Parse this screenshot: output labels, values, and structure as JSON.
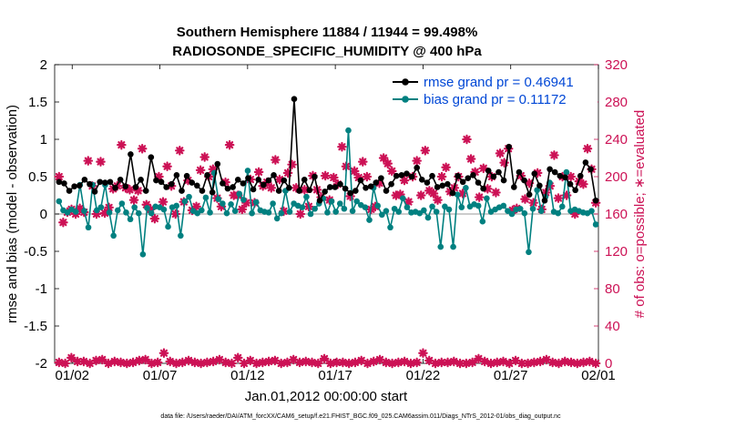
{
  "chart_data": {
    "type": "line",
    "title_line1": "Southern Hemisphere 11884 / 11944 = 99.498%",
    "title_line2": "RADIOSONDE_SPECIFIC_HUMIDITY @ 400 hPa",
    "ylabel_left": "rmse and bias (model - observation)",
    "ylabel_right": "# of obs: o=possible; ∗=evaluated",
    "xlabel": "Jan.01,2012 00:00:00 start",
    "footer": "data file: /Users/raeder/DAI/ATM_forcXX/CAM6_setup/f.e21.FHIST_BGC.f09_025.CAM6assim.011/Diags_NTrS_2012-01/obs_diag_output.nc",
    "x_range": [
      0,
      62
    ],
    "ylim_left": [
      -2,
      2
    ],
    "ylim_right": [
      0,
      320
    ],
    "y_ticks_left": [
      "-2",
      "-1.5",
      "-1",
      "-0.5",
      "0",
      "0.5",
      "1",
      "1.5",
      "2"
    ],
    "y_ticks_right": [
      "0",
      "40",
      "80",
      "120",
      "160",
      "200",
      "240",
      "280",
      "320"
    ],
    "x_tick_labels": [
      "01/02",
      "01/07",
      "01/12",
      "01/17",
      "01/22",
      "01/27",
      "02/01"
    ],
    "x_tick_positions": [
      2,
      12,
      22,
      32,
      42,
      52,
      62
    ],
    "colors": {
      "rmse": "#000000",
      "bias": "#008080",
      "obs": "#cc1155",
      "legend_text": "#0047d6",
      "right_axis": "#cc1155",
      "zero_line": "#bbbbbb"
    },
    "series": [
      {
        "name": "rmse grand pr = 0.46941",
        "values": [
          0.43,
          0.41,
          0.31,
          0.37,
          0.38,
          0.46,
          0.4,
          0.3,
          0.43,
          0.42,
          0.43,
          0.35,
          0.46,
          0.37,
          0.8,
          0.36,
          0.46,
          0.31,
          0.76,
          0.45,
          0.43,
          0.36,
          0.4,
          0.52,
          0.31,
          0.51,
          0.42,
          0.38,
          0.31,
          0.52,
          0.29,
          0.67,
          0.41,
          0.34,
          0.36,
          0.46,
          0.41,
          0.48,
          0.33,
          0.46,
          0.39,
          0.45,
          0.52,
          0.31,
          0.45,
          0.35,
          1.54,
          0.31,
          0.46,
          0.32,
          0.5,
          0.18,
          0.3,
          0.36,
          0.36,
          0.4,
          0.34,
          0.28,
          0.31,
          0.45,
          0.35,
          0.37,
          0.42,
          0.48,
          0.31,
          0.4,
          0.51,
          0.52,
          0.54,
          0.5,
          0.62,
          0.46,
          0.42,
          0.51,
          0.36,
          0.38,
          0.4,
          0.28,
          0.51,
          0.43,
          0.48,
          0.52,
          0.42,
          0.34,
          0.58,
          0.5,
          0.56,
          0.45,
          0.9,
          0.36,
          0.56,
          0.45,
          0.26,
          0.54,
          0.38,
          0.18,
          0.6,
          0.56,
          0.51,
          0.49,
          0.4,
          0.32,
          0.51,
          0.69,
          0.6,
          0.18
        ]
      },
      {
        "name": "bias grand pr = 0.11172",
        "values": [
          0.17,
          0.05,
          0.02,
          0.06,
          0.03,
          0.39,
          0.04,
          -0.18,
          0.39,
          0.05,
          0.09,
          0.39,
          0.02,
          -0.29,
          0.05,
          0.14,
          0.02,
          -0.07,
          0.09,
          0.01,
          -0.54,
          0.08,
          0.01,
          0.1,
          0.09,
          0.06,
          -0.17,
          0.09,
          0.11,
          -0.29,
          0.17,
          0.23,
          0.04,
          0.01,
          0.05,
          0.22,
          0.02,
          0.55,
          0.2,
          0.14,
          0.01,
          0.13,
          0.04,
          0.27,
          0.19,
          0.58,
          0.01,
          0.16,
          0.05,
          0.03,
          0.02,
          0.14,
          -0.06,
          0.01,
          0.31,
          0.03,
          0.14,
          0.11,
          0.09,
          0.23,
          0.0,
          0.07,
          0.14,
          0.21,
          0.02,
          0.17,
          0.03,
          0.14,
          0.07,
          1.12,
          0.04,
          0.17,
          0.12,
          0.09,
          -0.08,
          0.35,
          0.11,
          -0.01,
          0.04,
          -0.18,
          0.07,
          0.03,
          0.21,
          0.09,
          0.02,
          0.03,
          0.01,
          0.05,
          -0.05,
          0.1,
          0.03,
          -0.44,
          0.1,
          0.06,
          -0.44,
          0.26,
          0.09,
          0.35,
          0.1,
          0.13,
          0.11,
          -0.1,
          0.21,
          0.03,
          0.06,
          0.09,
          0.11,
          0.04,
          0.0,
          0.06,
          0.07,
          0.01,
          -0.51,
          0.07,
          0.32,
          0.04,
          0.23,
          0.42,
          0.03,
          0.01,
          0.1,
          0.56,
          0.04,
          0.06,
          0.04,
          0.02,
          0.01,
          0.04,
          -0.14
        ]
      },
      {
        "name": "# obs possible / evaluated",
        "values": [
          200,
          151,
          162,
          165,
          160,
          166,
          162,
          217,
          190,
          160,
          216,
          161,
          167,
          187,
          190,
          234,
          188,
          186,
          175,
          185,
          230,
          170,
          165,
          155,
          200,
          173,
          211,
          190,
          160,
          228,
          173,
          196,
          164,
          168,
          207,
          221,
          200,
          208,
          177,
          168,
          194,
          234,
          180,
          180,
          165,
          172,
          197,
          172,
          205,
          190,
          194,
          188,
          218,
          197,
          163,
          204,
          213,
          188,
          160,
          186,
          168,
          201,
          186,
          178,
          201,
          175,
          199,
          192,
          232,
          211,
          179,
          206,
          199,
          216,
          200,
          165,
          168,
          193,
          220,
          214,
          206,
          180,
          181,
          196,
          173,
          200,
          217,
          180,
          228,
          185,
          182,
          175,
          200,
          210,
          184,
          188,
          200,
          182,
          240,
          219,
          205,
          178,
          209,
          187,
          200,
          183,
          225,
          215,
          230,
          164,
          166,
          201,
          176,
          193,
          172,
          204,
          165,
          183,
          190,
          223,
          177,
          200,
          180,
          200,
          160,
          195,
          192,
          230,
          208,
          172
        ]
      },
      {
        "name": "# obs bottom row",
        "values": [
          1,
          0,
          6,
          2,
          2,
          0,
          3,
          4,
          0,
          2,
          1,
          0,
          1,
          3,
          4,
          0,
          1,
          11,
          2,
          0,
          1,
          3,
          1,
          0,
          1,
          2,
          4,
          1,
          0,
          6,
          0,
          3,
          0,
          1,
          2,
          3,
          0,
          1,
          4,
          1,
          2,
          1,
          0,
          5,
          0,
          1,
          1,
          0,
          1,
          3,
          0,
          2,
          4,
          1,
          0,
          1,
          2,
          0,
          1,
          11,
          3,
          0,
          1,
          1,
          2,
          0,
          0,
          1,
          5,
          2,
          0,
          1,
          2,
          0,
          3,
          0,
          0,
          1,
          2,
          4,
          1,
          0,
          2,
          1,
          0,
          1,
          2,
          0
        ]
      }
    ]
  }
}
